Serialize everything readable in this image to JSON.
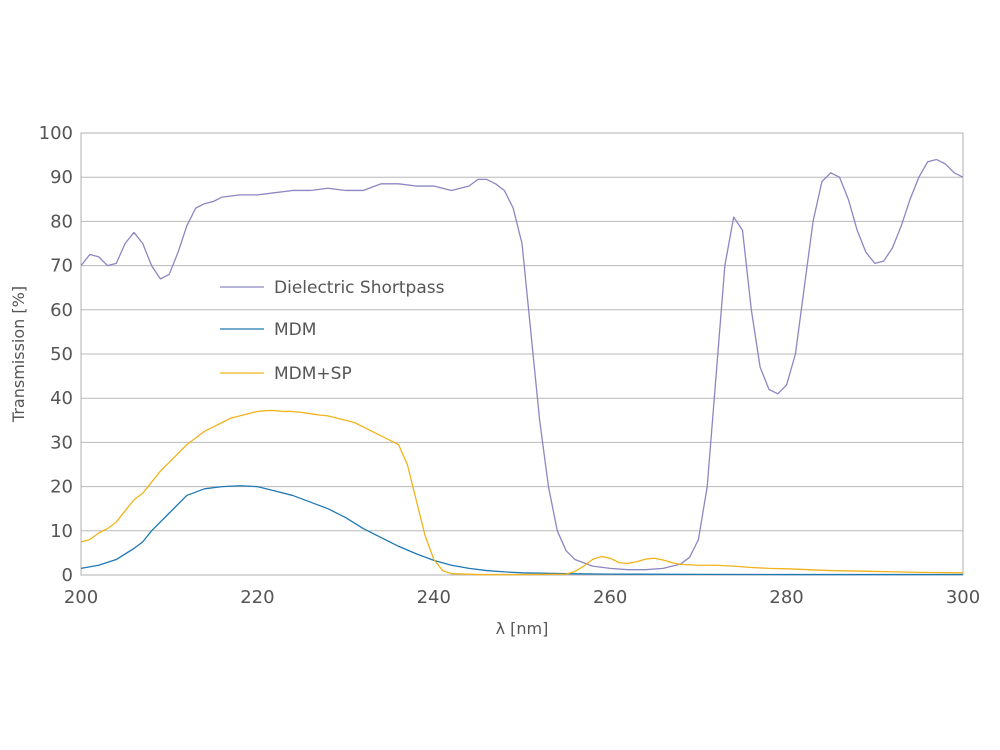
{
  "chart_data": {
    "type": "line",
    "xlabel": "λ [nm]",
    "ylabel": "Transmission [%]",
    "xlim": [
      200,
      300
    ],
    "ylim": [
      0,
      100
    ],
    "x_ticks": [
      200,
      220,
      240,
      260,
      280,
      300
    ],
    "y_ticks": [
      0,
      10,
      20,
      30,
      40,
      50,
      60,
      70,
      80,
      90,
      100
    ],
    "grid": "horizontal",
    "legend_position": "center-left",
    "series": [
      {
        "name": "Dielectric Shortpass",
        "color": "#8c86c2",
        "points": [
          [
            200,
            70
          ],
          [
            201,
            72.5
          ],
          [
            202,
            72
          ],
          [
            203,
            70
          ],
          [
            204,
            70.5
          ],
          [
            205,
            75
          ],
          [
            206,
            77.5
          ],
          [
            207,
            75
          ],
          [
            208,
            70
          ],
          [
            209,
            67
          ],
          [
            210,
            68
          ],
          [
            211,
            73
          ],
          [
            212,
            79
          ],
          [
            213,
            83
          ],
          [
            214,
            84
          ],
          [
            215,
            84.5
          ],
          [
            216,
            85.5
          ],
          [
            218,
            86
          ],
          [
            220,
            86
          ],
          [
            222,
            86.5
          ],
          [
            224,
            87
          ],
          [
            226,
            87
          ],
          [
            228,
            87.5
          ],
          [
            230,
            87
          ],
          [
            232,
            87
          ],
          [
            234,
            88.5
          ],
          [
            236,
            88.5
          ],
          [
            238,
            88
          ],
          [
            240,
            88
          ],
          [
            242,
            87
          ],
          [
            244,
            88
          ],
          [
            245,
            89.5
          ],
          [
            246,
            89.5
          ],
          [
            247,
            88.5
          ],
          [
            248,
            87
          ],
          [
            249,
            83
          ],
          [
            250,
            75
          ],
          [
            251,
            55
          ],
          [
            252,
            35
          ],
          [
            253,
            20
          ],
          [
            254,
            10
          ],
          [
            255,
            5.5
          ],
          [
            256,
            3.5
          ],
          [
            258,
            2
          ],
          [
            260,
            1.5
          ],
          [
            262,
            1.2
          ],
          [
            264,
            1.2
          ],
          [
            266,
            1.5
          ],
          [
            268,
            2.5
          ],
          [
            269,
            4
          ],
          [
            270,
            8
          ],
          [
            271,
            20
          ],
          [
            272,
            45
          ],
          [
            273,
            70
          ],
          [
            274,
            81
          ],
          [
            275,
            78
          ],
          [
            276,
            60
          ],
          [
            277,
            47
          ],
          [
            278,
            42
          ],
          [
            279,
            41
          ],
          [
            280,
            43
          ],
          [
            281,
            50
          ],
          [
            282,
            65
          ],
          [
            283,
            80
          ],
          [
            284,
            89
          ],
          [
            285,
            91
          ],
          [
            286,
            90
          ],
          [
            287,
            85
          ],
          [
            288,
            78
          ],
          [
            289,
            73
          ],
          [
            290,
            70.5
          ],
          [
            291,
            71
          ],
          [
            292,
            74
          ],
          [
            293,
            79
          ],
          [
            294,
            85
          ],
          [
            295,
            90
          ],
          [
            296,
            93.5
          ],
          [
            297,
            94
          ],
          [
            298,
            93
          ],
          [
            299,
            91
          ],
          [
            300,
            90
          ]
        ]
      },
      {
        "name": "MDM",
        "color": "#1f78b4",
        "points": [
          [
            200,
            1.5
          ],
          [
            202,
            2.2
          ],
          [
            204,
            3.5
          ],
          [
            206,
            6
          ],
          [
            207,
            7.5
          ],
          [
            208,
            10
          ],
          [
            210,
            14
          ],
          [
            212,
            18
          ],
          [
            214,
            19.5
          ],
          [
            216,
            20
          ],
          [
            218,
            20.2
          ],
          [
            220,
            20
          ],
          [
            222,
            19
          ],
          [
            224,
            18
          ],
          [
            226,
            16.5
          ],
          [
            228,
            15
          ],
          [
            230,
            13
          ],
          [
            232,
            10.5
          ],
          [
            234,
            8.5
          ],
          [
            236,
            6.5
          ],
          [
            238,
            4.8
          ],
          [
            240,
            3.3
          ],
          [
            242,
            2.2
          ],
          [
            244,
            1.5
          ],
          [
            246,
            1
          ],
          [
            248,
            0.7
          ],
          [
            250,
            0.5
          ],
          [
            255,
            0.3
          ],
          [
            260,
            0.2
          ],
          [
            270,
            0.15
          ],
          [
            280,
            0.1
          ],
          [
            290,
            0.1
          ],
          [
            300,
            0.1
          ]
        ]
      },
      {
        "name": "MDM+SP",
        "color": "#f2b21b",
        "points": [
          [
            200,
            7.5
          ],
          [
            201,
            8
          ],
          [
            202,
            9.5
          ],
          [
            203,
            10.5
          ],
          [
            204,
            12
          ],
          [
            205,
            14.5
          ],
          [
            206,
            17
          ],
          [
            207,
            18.5
          ],
          [
            208,
            21
          ],
          [
            209,
            23.5
          ],
          [
            210,
            25.5
          ],
          [
            211,
            27.5
          ],
          [
            212,
            29.5
          ],
          [
            213,
            31
          ],
          [
            214,
            32.5
          ],
          [
            215,
            33.5
          ],
          [
            216,
            34.5
          ],
          [
            217,
            35.5
          ],
          [
            218,
            36
          ],
          [
            219,
            36.5
          ],
          [
            220,
            37
          ],
          [
            221,
            37.2
          ],
          [
            222,
            37.2
          ],
          [
            223,
            37
          ],
          [
            224,
            37
          ],
          [
            225,
            36.8
          ],
          [
            226,
            36.5
          ],
          [
            227,
            36.2
          ],
          [
            228,
            36
          ],
          [
            229,
            35.5
          ],
          [
            230,
            35
          ],
          [
            231,
            34.5
          ],
          [
            232,
            33.5
          ],
          [
            233,
            32.5
          ],
          [
            234,
            31.5
          ],
          [
            235,
            30.5
          ],
          [
            236,
            29.5
          ],
          [
            237,
            25
          ],
          [
            238,
            17
          ],
          [
            239,
            9
          ],
          [
            240,
            3.5
          ],
          [
            241,
            1
          ],
          [
            242,
            0.3
          ],
          [
            245,
            0.1
          ],
          [
            250,
            0.1
          ],
          [
            255,
            0.2
          ],
          [
            256,
            0.8
          ],
          [
            257,
            2
          ],
          [
            258,
            3.5
          ],
          [
            259,
            4.2
          ],
          [
            260,
            3.8
          ],
          [
            261,
            2.8
          ],
          [
            262,
            2.6
          ],
          [
            263,
            3
          ],
          [
            264,
            3.6
          ],
          [
            265,
            3.8
          ],
          [
            266,
            3.4
          ],
          [
            267,
            2.8
          ],
          [
            268,
            2.4
          ],
          [
            270,
            2.2
          ],
          [
            272,
            2.2
          ],
          [
            274,
            2
          ],
          [
            276,
            1.7
          ],
          [
            278,
            1.5
          ],
          [
            280,
            1.4
          ],
          [
            285,
            1
          ],
          [
            290,
            0.8
          ],
          [
            295,
            0.6
          ],
          [
            300,
            0.5
          ]
        ]
      }
    ]
  }
}
